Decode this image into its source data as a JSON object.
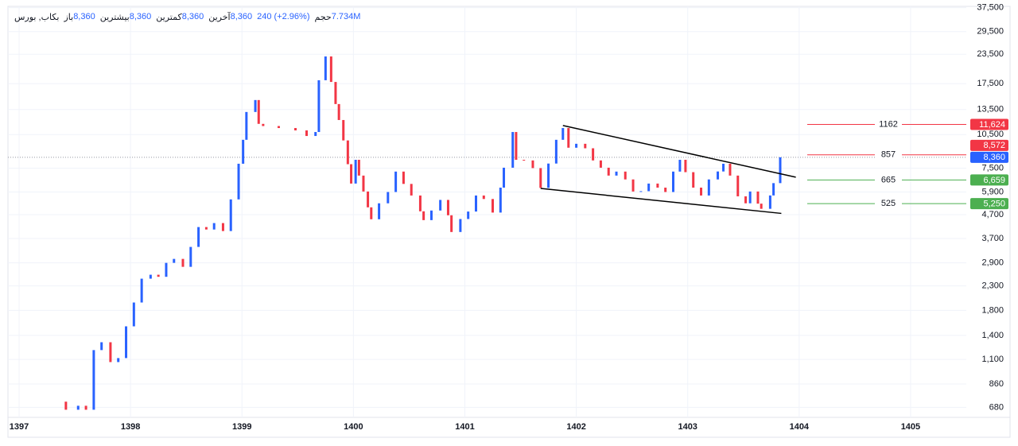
{
  "chart_data": {
    "type": "candlestick",
    "header": {
      "symbol": "بکاب, بورس",
      "fields": [
        {
          "label": "باز",
          "value": "8,360"
        },
        {
          "label": "بیشترین",
          "value": "8,360"
        },
        {
          "label": "کمترین",
          "value": "8,360"
        },
        {
          "label": "آخرین",
          "value": "8,360"
        }
      ],
      "change": "240 (+2.96%)",
      "volume": {
        "label": "حجم",
        "value": "7.734M"
      }
    },
    "x": [
      1397.42,
      1397.53,
      1397.6,
      1397.67,
      1397.74,
      1397.82,
      1397.89,
      1397.96,
      1398.03,
      1398.1,
      1398.18,
      1398.25,
      1398.32,
      1398.39,
      1398.47,
      1398.54,
      1398.61,
      1398.68,
      1398.75,
      1398.83,
      1398.9,
      1398.97,
      1399.01,
      1399.04,
      1399.12,
      1399.15,
      1399.19,
      1399.33,
      1399.48,
      1399.58,
      1399.66,
      1399.69,
      1399.75,
      1399.8,
      1399.84,
      1399.87,
      1399.91,
      1399.95,
      1399.98,
      1400.02,
      1400.05,
      1400.09,
      1400.13,
      1400.16,
      1400.23,
      1400.31,
      1400.38,
      1400.45,
      1400.52,
      1400.6,
      1400.63,
      1400.7,
      1400.78,
      1400.85,
      1400.88,
      1400.96,
      1401.03,
      1401.1,
      1401.17,
      1401.25,
      1401.32,
      1401.35,
      1401.43,
      1401.46,
      1401.53,
      1401.61,
      1401.68,
      1401.75,
      1401.82,
      1401.88,
      1401.93,
      1402.0,
      1402.08,
      1402.15,
      1402.22,
      1402.29,
      1402.36,
      1402.44,
      1402.51,
      1402.58,
      1402.65,
      1402.73,
      1402.8,
      1402.87,
      1402.93,
      1402.98,
      1403.05,
      1403.12,
      1403.19,
      1403.27,
      1403.32,
      1403.38,
      1403.45,
      1403.52,
      1403.56,
      1403.63,
      1403.66,
      1403.74,
      1403.77,
      1403.83
    ],
    "open": [
      720,
      664,
      691,
      664,
      1208,
      1307,
      1071,
      1115,
      1533,
      1947,
      2473,
      2573,
      2520,
      2898,
      3016,
      2785,
      3401,
      4151,
      4050,
      4320,
      3988,
      5479,
      7836,
      9962,
      13170,
      14845,
      11690,
      11436,
      11210,
      10946,
      10351,
      10772,
      18110,
      22990,
      17800,
      14260,
      12150,
      9900,
      7800,
      6422,
      8152,
      6957,
      5930,
      5059,
      4489,
      5268,
      5900,
      7242,
      6400,
      5697,
      4862,
      4450,
      4900,
      5450,
      4672,
      3950,
      4500,
      4850,
      5697,
      5500,
      4800,
      6165,
      7530,
      10772,
      8152,
      8100,
      7500,
      6150,
      7850,
      9962,
      11210,
      9202,
      9572,
      9150,
      8100,
      7530,
      6957,
      7242,
      6694,
      5930,
      5950,
      6422,
      6165,
      5900,
      7242,
      8152,
      7200,
      6165,
      5697,
      6694,
      7250,
      7836,
      6957,
      5650,
      5268,
      5930,
      5250,
      4985,
      5700,
      6450
    ],
    "close": [
      664,
      691,
      664,
      1208,
      1307,
      1071,
      1115,
      1533,
      1947,
      2473,
      2573,
      2520,
      2898,
      3016,
      2785,
      3401,
      4151,
      4050,
      4320,
      3988,
      5479,
      7836,
      9962,
      13170,
      14845,
      11690,
      11436,
      11210,
      10946,
      10351,
      10772,
      18110,
      22990,
      17800,
      14260,
      12150,
      9900,
      7800,
      6422,
      8152,
      6957,
      5930,
      5059,
      4489,
      5268,
      5900,
      7242,
      6400,
      5697,
      4862,
      4450,
      4900,
      5450,
      4672,
      3950,
      4500,
      4850,
      5697,
      5500,
      4800,
      6165,
      7530,
      10772,
      8152,
      8100,
      7500,
      6150,
      7850,
      9962,
      11210,
      9202,
      9572,
      9150,
      8100,
      7530,
      6957,
      7242,
      6694,
      5930,
      5950,
      6422,
      6165,
      5900,
      7242,
      8152,
      7200,
      6165,
      5697,
      6694,
      7250,
      7836,
      6957,
      5650,
      5268,
      5930,
      5250,
      4985,
      5700,
      6450,
      8360
    ],
    "up_color": "#2962ff",
    "down_color": "#f23645",
    "log_y": true,
    "grid": true,
    "ylim": [
      615,
      38000
    ],
    "yticks": [
      {
        "value": 680,
        "label": "680"
      },
      {
        "value": 860,
        "label": "860"
      },
      {
        "value": 1100,
        "label": "1,100"
      },
      {
        "value": 1400,
        "label": "1,400"
      },
      {
        "value": 1800,
        "label": "1,800"
      },
      {
        "value": 2300,
        "label": "2,300"
      },
      {
        "value": 2900,
        "label": "2,900"
      },
      {
        "value": 3700,
        "label": "3,700"
      },
      {
        "value": 4700,
        "label": "4,700"
      },
      {
        "value": 5900,
        "label": "5,900"
      },
      {
        "value": 7500,
        "label": "7,500"
      },
      {
        "value": 10500,
        "label": "10,500"
      },
      {
        "value": 13500,
        "label": "13,500"
      },
      {
        "value": 17500,
        "label": "17,500"
      },
      {
        "value": 23500,
        "label": "23,500"
      },
      {
        "value": 29500,
        "label": "29,500"
      },
      {
        "value": 37500,
        "label": "37,500"
      }
    ],
    "xlim": [
      1396.9,
      1405.5
    ],
    "xticks": [
      1397,
      1398,
      1399,
      1400,
      1401,
      1402,
      1403,
      1404,
      1405
    ],
    "trendlines": [
      [
        {
          "x": 1401.88,
          "y": 11500
        },
        {
          "x": 1403.97,
          "y": 6845
        }
      ],
      [
        {
          "x": 1401.68,
          "y": 6115
        },
        {
          "x": 1403.84,
          "y": 4760
        }
      ]
    ],
    "levels": [
      {
        "name": "1162",
        "value": 11624,
        "label": "11,624",
        "color": "#f23645"
      },
      {
        "name": "857",
        "value": 8572,
        "label": "8,572",
        "color": "#f23645"
      },
      {
        "name": "665",
        "value": 6659,
        "label": "6,659",
        "color": "#4caf50"
      },
      {
        "name": "525",
        "value": 5250,
        "label": "5,250",
        "color": "#4caf50"
      }
    ],
    "last_price": {
      "value": 8360,
      "label": "8,360",
      "color": "#2962ff"
    }
  }
}
